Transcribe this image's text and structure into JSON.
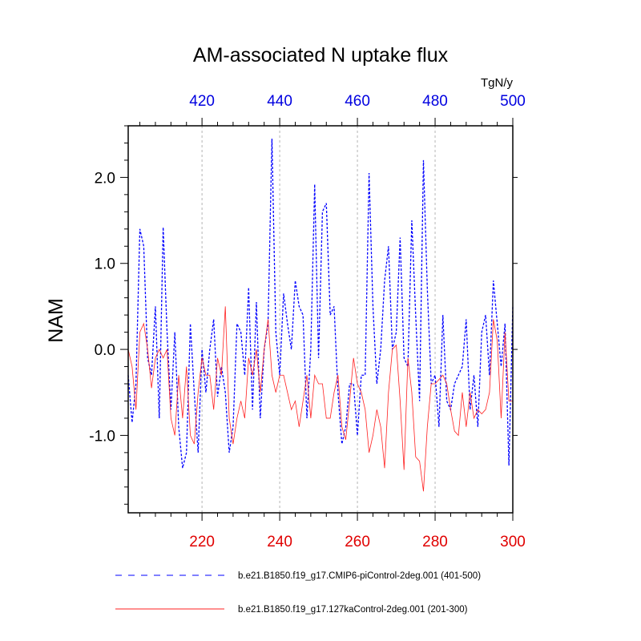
{
  "chart_data": {
    "type": "line",
    "title": "AM-associated N uptake flux",
    "ylabel": "NAM",
    "units": "TgN/y",
    "ylim": [
      -1.9,
      2.6
    ],
    "yticks": [
      -1.0,
      0.0,
      1.0,
      2.0
    ],
    "ytick_labels": [
      "-1.0",
      "0.0",
      "1.0",
      "2.0"
    ],
    "bottom_axis": {
      "xlim": [
        201,
        300
      ],
      "ticks": [
        220,
        240,
        260,
        280,
        300
      ],
      "tick_labels": [
        "220",
        "240",
        "260",
        "280",
        "300"
      ],
      "color": "#e00000"
    },
    "top_axis": {
      "xlim": [
        401,
        500
      ],
      "ticks": [
        420,
        440,
        460,
        480,
        500
      ],
      "tick_labels": [
        "420",
        "440",
        "460",
        "480",
        "500"
      ],
      "color": "#0000e0"
    },
    "gridlines_x": [
      220,
      240,
      260,
      280
    ],
    "series": [
      {
        "name": "b.e21.B1850.f19_g17.CMIP6-piControl-2deg.001 (401-500)",
        "color": "#0000ff",
        "style": "dashed",
        "axis": "top",
        "x": [
          401,
          402,
          403,
          404,
          405,
          406,
          407,
          408,
          409,
          410,
          411,
          412,
          413,
          414,
          415,
          416,
          417,
          418,
          419,
          420,
          421,
          422,
          423,
          424,
          425,
          426,
          427,
          428,
          429,
          430,
          431,
          432,
          433,
          434,
          435,
          436,
          437,
          438,
          439,
          440,
          441,
          442,
          443,
          444,
          445,
          446,
          447,
          448,
          449,
          450,
          451,
          452,
          453,
          454,
          455,
          456,
          457,
          458,
          459,
          460,
          461,
          462,
          463,
          464,
          465,
          466,
          467,
          468,
          469,
          470,
          471,
          472,
          473,
          474,
          475,
          476,
          477,
          478,
          479,
          480,
          481,
          482,
          483,
          484,
          485,
          486,
          487,
          488,
          489,
          490,
          491,
          492,
          493,
          494,
          495,
          496,
          497,
          498,
          499,
          500
        ],
        "values": [
          -0.3,
          -0.85,
          -0.4,
          1.4,
          1.2,
          -0.1,
          -0.3,
          0.5,
          -0.8,
          1.42,
          0.2,
          -0.7,
          0.2,
          -0.9,
          -1.38,
          -1.2,
          0.3,
          -0.5,
          -1.2,
          0.0,
          -0.5,
          0.0,
          0.35,
          -0.55,
          -0.2,
          -0.5,
          -1.2,
          -0.9,
          0.3,
          0.2,
          -0.3,
          0.72,
          -0.7,
          0.55,
          -0.8,
          0.0,
          0.3,
          2.45,
          0.2,
          -0.3,
          0.65,
          0.3,
          0.0,
          0.8,
          0.5,
          0.4,
          -0.8,
          0.0,
          1.92,
          -0.1,
          1.6,
          1.7,
          0.4,
          0.5,
          -0.5,
          -1.1,
          -0.9,
          -0.4,
          -0.4,
          -1.0,
          -0.3,
          -0.3,
          2.05,
          0.5,
          -0.4,
          0.0,
          0.8,
          1.2,
          0.0,
          0.2,
          1.3,
          -0.1,
          -0.2,
          1.5,
          0.4,
          -0.6,
          2.2,
          0.7,
          -0.4,
          -0.3,
          -0.9,
          0.4,
          -0.6,
          -0.7,
          -0.4,
          -0.3,
          -0.2,
          0.35,
          -0.7,
          -0.3,
          -0.9,
          0.2,
          0.4,
          -0.3,
          0.8,
          0.3,
          -0.2,
          0.3,
          -1.35,
          0.5
        ]
      },
      {
        "name": "b.e21.B1850.f19_g17.127kaControl-2deg.001 (201-300)",
        "color": "#ff2020",
        "style": "solid",
        "axis": "bottom",
        "x": [
          201,
          202,
          203,
          204,
          205,
          206,
          207,
          208,
          209,
          210,
          211,
          212,
          213,
          214,
          215,
          216,
          217,
          218,
          219,
          220,
          221,
          222,
          223,
          224,
          225,
          226,
          227,
          228,
          229,
          230,
          231,
          232,
          233,
          234,
          235,
          236,
          237,
          238,
          239,
          240,
          241,
          242,
          243,
          244,
          245,
          246,
          247,
          248,
          249,
          250,
          251,
          252,
          253,
          254,
          255,
          256,
          257,
          258,
          259,
          260,
          261,
          262,
          263,
          264,
          265,
          266,
          267,
          268,
          269,
          270,
          271,
          272,
          273,
          274,
          275,
          276,
          277,
          278,
          279,
          280,
          281,
          282,
          283,
          284,
          285,
          286,
          287,
          288,
          289,
          290,
          291,
          292,
          293,
          294,
          295,
          296,
          297,
          298,
          299,
          300
        ],
        "values": [
          0.0,
          -0.2,
          -0.7,
          0.2,
          0.3,
          0.0,
          -0.45,
          -0.1,
          0.0,
          -0.1,
          0.0,
          -0.8,
          -1.0,
          -0.3,
          -0.8,
          -0.2,
          -1.0,
          -1.1,
          -0.5,
          -0.1,
          -0.3,
          -0.3,
          -0.7,
          -0.1,
          -0.3,
          0.5,
          -0.8,
          -1.1,
          -0.8,
          -0.6,
          -0.8,
          -0.1,
          -0.3,
          0.0,
          -0.5,
          0.0,
          0.35,
          -0.3,
          -0.5,
          -0.3,
          -0.3,
          -0.5,
          -0.7,
          -0.6,
          -0.9,
          -0.6,
          -0.3,
          -0.8,
          -0.3,
          -0.4,
          -0.4,
          -0.8,
          -0.8,
          -0.5,
          -0.3,
          -0.9,
          -1.05,
          -0.6,
          -0.1,
          -0.4,
          -0.5,
          -0.7,
          -1.2,
          -1.0,
          -0.7,
          -0.9,
          -1.38,
          -0.5,
          0.0,
          0.05,
          -0.6,
          -1.4,
          -0.1,
          -0.5,
          -1.25,
          -1.3,
          -1.65,
          -0.9,
          -0.4,
          -0.4,
          -0.35,
          -0.3,
          -0.4,
          -0.7,
          -0.95,
          -1.0,
          -0.5,
          -0.9,
          -0.5,
          -0.8,
          -0.7,
          -0.75,
          -0.7,
          -0.5,
          0.35,
          0.1,
          -0.8,
          0.2,
          -0.6,
          -0.6
        ]
      }
    ],
    "legend": {
      "position": "bottom"
    }
  }
}
